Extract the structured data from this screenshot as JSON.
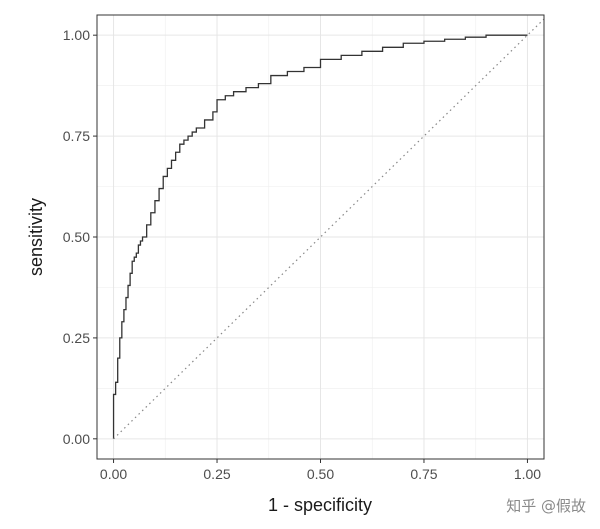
{
  "chart_data": {
    "type": "line",
    "xlabel": "1 - specificity",
    "ylabel": "sensitivity",
    "xlim": [
      -0.04,
      1.04
    ],
    "ylim": [
      -0.05,
      1.05
    ],
    "x_ticks": [
      "0.00",
      "0.25",
      "0.50",
      "0.75",
      "1.00"
    ],
    "y_ticks": [
      "0.00",
      "0.25",
      "0.50",
      "0.75",
      "1.00"
    ],
    "x_tick_values": [
      0,
      0.25,
      0.5,
      0.75,
      1
    ],
    "y_tick_values": [
      0,
      0.25,
      0.5,
      0.75,
      1
    ],
    "grid": true,
    "series": [
      {
        "style": "step",
        "color": "#333333",
        "x": [
          0.0,
          0.0,
          0.005,
          0.01,
          0.015,
          0.02,
          0.025,
          0.03,
          0.035,
          0.04,
          0.045,
          0.05,
          0.055,
          0.06,
          0.065,
          0.07,
          0.08,
          0.09,
          0.1,
          0.11,
          0.12,
          0.13,
          0.14,
          0.15,
          0.16,
          0.17,
          0.18,
          0.19,
          0.2,
          0.22,
          0.24,
          0.25,
          0.27,
          0.29,
          0.32,
          0.35,
          0.38,
          0.42,
          0.46,
          0.5,
          0.55,
          0.6,
          0.65,
          0.7,
          0.75,
          0.8,
          0.85,
          0.9,
          0.95,
          1.0,
          1.0
        ],
        "y": [
          0.0,
          0.07,
          0.11,
          0.14,
          0.2,
          0.25,
          0.29,
          0.32,
          0.35,
          0.38,
          0.41,
          0.44,
          0.45,
          0.46,
          0.48,
          0.49,
          0.5,
          0.53,
          0.56,
          0.59,
          0.62,
          0.65,
          0.67,
          0.69,
          0.71,
          0.73,
          0.74,
          0.75,
          0.76,
          0.77,
          0.79,
          0.81,
          0.84,
          0.85,
          0.86,
          0.87,
          0.88,
          0.9,
          0.91,
          0.92,
          0.94,
          0.95,
          0.96,
          0.97,
          0.98,
          0.985,
          0.99,
          0.995,
          1.0,
          1.0,
          1.0
        ]
      },
      {
        "style": "dotted",
        "color": "#888888",
        "x": [
          0,
          1.04
        ],
        "y": [
          0,
          1.04
        ]
      }
    ]
  },
  "watermark": {
    "text": "知乎 @假故"
  }
}
